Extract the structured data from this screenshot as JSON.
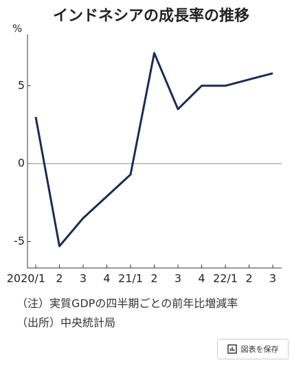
{
  "chart_data": {
    "type": "line",
    "title": "インドネシアの成長率の推移",
    "y_label": "%",
    "categories": [
      "2020/1",
      "2",
      "3",
      "4",
      "21/1",
      "2",
      "3",
      "4",
      "22/1",
      "2",
      "3"
    ],
    "series": [
      {
        "name": "成長率",
        "color": "#1b2a55",
        "values": [
          3.0,
          -5.3,
          -3.5,
          -2.1,
          -0.7,
          7.1,
          3.5,
          5.0,
          5.0,
          5.4,
          5.8
        ]
      }
    ],
    "ylim": [
      -6.7,
      8.3
    ],
    "yticks": [
      -5,
      0,
      5
    ]
  },
  "notes": [
    "（注）実質GDPの四半期ごとの前年比増減率",
    "（出所）中央統計局"
  ],
  "button": "図表を保存"
}
